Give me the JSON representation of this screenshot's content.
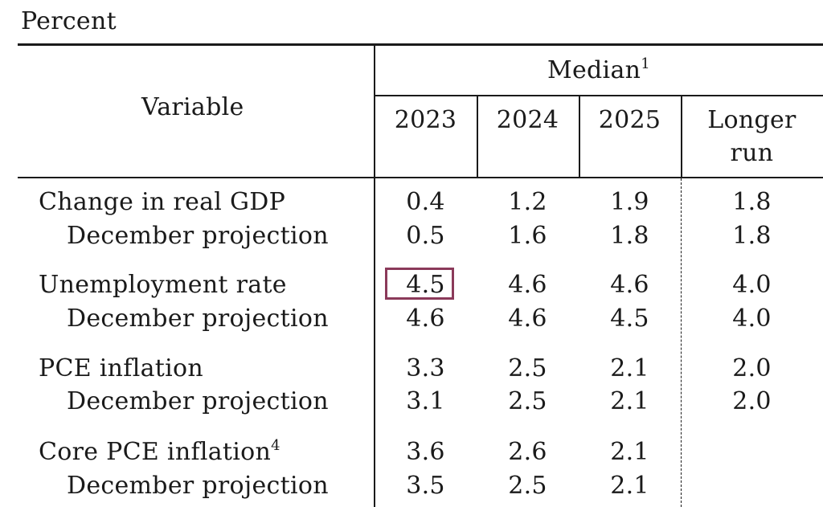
{
  "unit_label": "Percent",
  "header": {
    "variable_label": "Variable",
    "median_label": "Median",
    "median_note": "1",
    "years": [
      "2023",
      "2024",
      "2025"
    ],
    "longer_run_line1": "Longer",
    "longer_run_line2": "run"
  },
  "rows": [
    {
      "label": "Change in real GDP",
      "note": "",
      "values": [
        "0.4",
        "1.2",
        "1.9",
        "1.8"
      ]
    },
    {
      "label": "December projection",
      "note": "",
      "values": [
        "0.5",
        "1.6",
        "1.8",
        "1.8"
      ]
    },
    {
      "label": "Unemployment rate",
      "note": "",
      "values": [
        "4.5",
        "4.6",
        "4.6",
        "4.0"
      ]
    },
    {
      "label": "December projection",
      "note": "",
      "values": [
        "4.6",
        "4.6",
        "4.5",
        "4.0"
      ]
    },
    {
      "label": "PCE inflation",
      "note": "",
      "values": [
        "3.3",
        "2.5",
        "2.1",
        "2.0"
      ]
    },
    {
      "label": "December projection",
      "note": "",
      "values": [
        "3.1",
        "2.5",
        "2.1",
        "2.0"
      ]
    },
    {
      "label": "Core PCE inflation",
      "note": "4",
      "values": [
        "3.6",
        "2.6",
        "2.1",
        ""
      ]
    },
    {
      "label": "December projection",
      "note": "",
      "values": [
        "3.5",
        "2.5",
        "2.1",
        ""
      ]
    }
  ],
  "highlight_color": "#8b3a5a"
}
